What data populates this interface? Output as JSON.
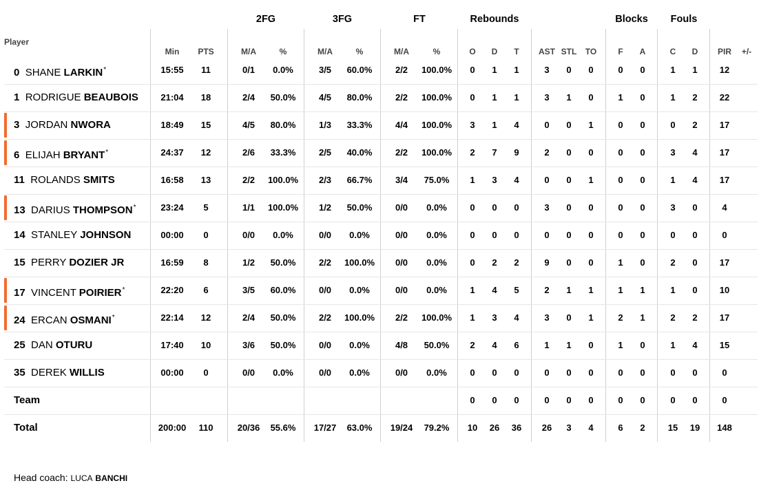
{
  "groups": [
    {
      "key": "fg2",
      "label": "2FG"
    },
    {
      "key": "fg3",
      "label": "3FG"
    },
    {
      "key": "ft",
      "label": "FT"
    },
    {
      "key": "reb",
      "label": "Rebounds"
    },
    {
      "key": "blk",
      "label": "Blocks"
    },
    {
      "key": "fouls",
      "label": "Fouls"
    }
  ],
  "player_header": "Player",
  "subheaders": [
    "Min",
    "PTS",
    "M/A",
    "%",
    "M/A",
    "%",
    "M/A",
    "%",
    "O",
    "D",
    "T",
    "AST",
    "STL",
    "TO",
    "F",
    "A",
    "C",
    "D",
    "PIR",
    "+/-"
  ],
  "players": [
    {
      "number": "0",
      "first": "SHANE",
      "last": "LARKIN",
      "starter": true,
      "marker": false,
      "stats": [
        "15:55",
        "11",
        "0/1",
        "0.0%",
        "3/5",
        "60.0%",
        "2/2",
        "100.0%",
        "0",
        "1",
        "1",
        "3",
        "0",
        "0",
        "0",
        "0",
        "1",
        "1",
        "12",
        ""
      ]
    },
    {
      "number": "1",
      "first": "RODRIGUE",
      "last": "BEAUBOIS",
      "starter": false,
      "marker": false,
      "stats": [
        "21:04",
        "18",
        "2/4",
        "50.0%",
        "4/5",
        "80.0%",
        "2/2",
        "100.0%",
        "0",
        "1",
        "1",
        "3",
        "1",
        "0",
        "1",
        "0",
        "1",
        "2",
        "22",
        ""
      ]
    },
    {
      "number": "3",
      "first": "JORDAN",
      "last": "NWORA",
      "starter": false,
      "marker": true,
      "stats": [
        "18:49",
        "15",
        "4/5",
        "80.0%",
        "1/3",
        "33.3%",
        "4/4",
        "100.0%",
        "3",
        "1",
        "4",
        "0",
        "0",
        "1",
        "0",
        "0",
        "0",
        "2",
        "17",
        ""
      ]
    },
    {
      "number": "6",
      "first": "ELIJAH",
      "last": "BRYANT",
      "starter": true,
      "marker": true,
      "stats": [
        "24:37",
        "12",
        "2/6",
        "33.3%",
        "2/5",
        "40.0%",
        "2/2",
        "100.0%",
        "2",
        "7",
        "9",
        "2",
        "0",
        "0",
        "0",
        "0",
        "3",
        "4",
        "17",
        ""
      ]
    },
    {
      "number": "11",
      "first": "ROLANDS",
      "last": "SMITS",
      "starter": false,
      "marker": false,
      "stats": [
        "16:58",
        "13",
        "2/2",
        "100.0%",
        "2/3",
        "66.7%",
        "3/4",
        "75.0%",
        "1",
        "3",
        "4",
        "0",
        "0",
        "1",
        "0",
        "0",
        "1",
        "4",
        "17",
        ""
      ]
    },
    {
      "number": "13",
      "first": "DARIUS",
      "last": "THOMPSON",
      "starter": true,
      "marker": true,
      "stats": [
        "23:24",
        "5",
        "1/1",
        "100.0%",
        "1/2",
        "50.0%",
        "0/0",
        "0.0%",
        "0",
        "0",
        "0",
        "3",
        "0",
        "0",
        "0",
        "0",
        "3",
        "0",
        "4",
        ""
      ]
    },
    {
      "number": "14",
      "first": "STANLEY",
      "last": "JOHNSON",
      "starter": false,
      "marker": false,
      "stats": [
        "00:00",
        "0",
        "0/0",
        "0.0%",
        "0/0",
        "0.0%",
        "0/0",
        "0.0%",
        "0",
        "0",
        "0",
        "0",
        "0",
        "0",
        "0",
        "0",
        "0",
        "0",
        "0",
        ""
      ]
    },
    {
      "number": "15",
      "first": "PERRY",
      "last": "DOZIER JR",
      "starter": false,
      "marker": false,
      "stats": [
        "16:59",
        "8",
        "1/2",
        "50.0%",
        "2/2",
        "100.0%",
        "0/0",
        "0.0%",
        "0",
        "2",
        "2",
        "9",
        "0",
        "0",
        "1",
        "0",
        "2",
        "0",
        "17",
        ""
      ]
    },
    {
      "number": "17",
      "first": "VINCENT",
      "last": "POIRIER",
      "starter": true,
      "marker": true,
      "stats": [
        "22:20",
        "6",
        "3/5",
        "60.0%",
        "0/0",
        "0.0%",
        "0/0",
        "0.0%",
        "1",
        "4",
        "5",
        "2",
        "1",
        "1",
        "1",
        "1",
        "1",
        "0",
        "10",
        ""
      ]
    },
    {
      "number": "24",
      "first": "ERCAN",
      "last": "OSMANI",
      "starter": true,
      "marker": true,
      "stats": [
        "22:14",
        "12",
        "2/4",
        "50.0%",
        "2/2",
        "100.0%",
        "2/2",
        "100.0%",
        "1",
        "3",
        "4",
        "3",
        "0",
        "1",
        "2",
        "1",
        "2",
        "2",
        "17",
        ""
      ]
    },
    {
      "number": "25",
      "first": "DAN",
      "last": "OTURU",
      "starter": false,
      "marker": false,
      "stats": [
        "17:40",
        "10",
        "3/6",
        "50.0%",
        "0/0",
        "0.0%",
        "4/8",
        "50.0%",
        "2",
        "4",
        "6",
        "1",
        "1",
        "0",
        "1",
        "0",
        "1",
        "4",
        "15",
        ""
      ]
    },
    {
      "number": "35",
      "first": "DEREK",
      "last": "WILLIS",
      "starter": false,
      "marker": false,
      "stats": [
        "00:00",
        "0",
        "0/0",
        "0.0%",
        "0/0",
        "0.0%",
        "0/0",
        "0.0%",
        "0",
        "0",
        "0",
        "0",
        "0",
        "0",
        "0",
        "0",
        "0",
        "0",
        "0",
        ""
      ]
    }
  ],
  "team_row": {
    "label": "Team",
    "stats": [
      "",
      "",
      "",
      "",
      "",
      "",
      "",
      "",
      "0",
      "0",
      "0",
      "0",
      "0",
      "0",
      "0",
      "0",
      "0",
      "0",
      "0",
      ""
    ]
  },
  "total_row": {
    "label": "Total",
    "stats": [
      "200:00",
      "110",
      "20/36",
      "55.6%",
      "17/27",
      "63.0%",
      "19/24",
      "79.2%",
      "10",
      "26",
      "36",
      "26",
      "3",
      "4",
      "6",
      "2",
      "15",
      "19",
      "148",
      ""
    ]
  },
  "starter_mark": "*",
  "head_coach": {
    "label": "Head coach:",
    "first": "LUCA",
    "last": "BANCHI"
  },
  "colors": {
    "marker": "#f26b2f",
    "divider": "#cfcfcf",
    "row_border": "#e6e6e6"
  }
}
